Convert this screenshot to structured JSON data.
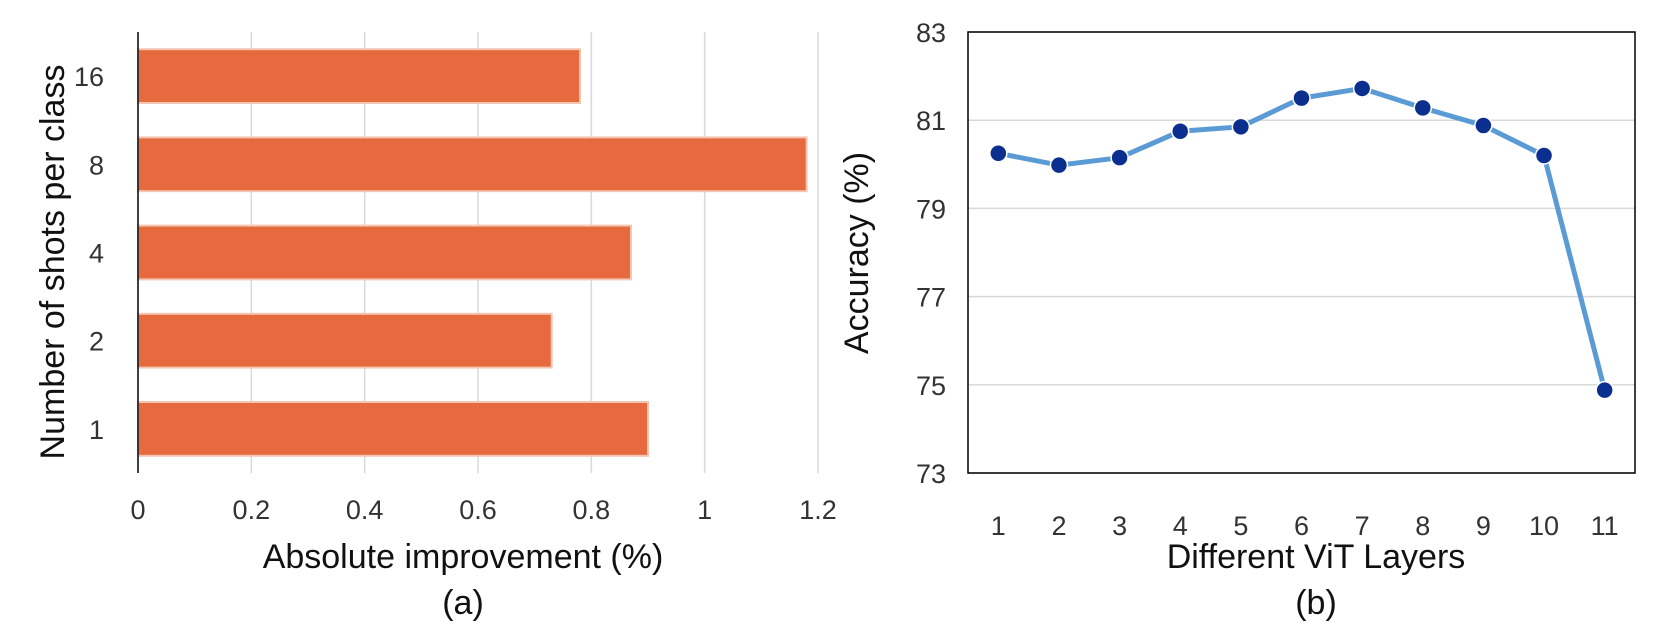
{
  "chart_data": [
    {
      "type": "bar",
      "orientation": "horizontal",
      "categories": [
        "1",
        "2",
        "4",
        "8",
        "16"
      ],
      "values": [
        0.9,
        0.73,
        0.87,
        1.18,
        0.78
      ],
      "xlabel": "Absolute improvement (%)",
      "ylabel": "Number of shots per class",
      "xlim": [
        0,
        1.2
      ],
      "xticks": [
        "0",
        "0.2",
        "0.4",
        "0.6",
        "0.8",
        "1",
        "1.2"
      ],
      "grid": "vertical",
      "caption": "(a)",
      "bar_color": "#E66A3E"
    },
    {
      "type": "line",
      "x": [
        "1",
        "2",
        "3",
        "4",
        "5",
        "6",
        "7",
        "8",
        "9",
        "10",
        "11"
      ],
      "values": [
        80.25,
        79.98,
        80.15,
        80.75,
        80.85,
        81.5,
        81.72,
        81.28,
        80.88,
        80.2,
        74.88
      ],
      "xlabel": "Different ViT Layers",
      "ylabel": "Accuracy (%)",
      "ylim": [
        73,
        83
      ],
      "yticks": [
        "73",
        "75",
        "77",
        "79",
        "81",
        "83"
      ],
      "grid": "horizontal",
      "caption": "(b)",
      "line_color": "#5B9BD5",
      "marker_color": "#0B2F8F"
    }
  ]
}
